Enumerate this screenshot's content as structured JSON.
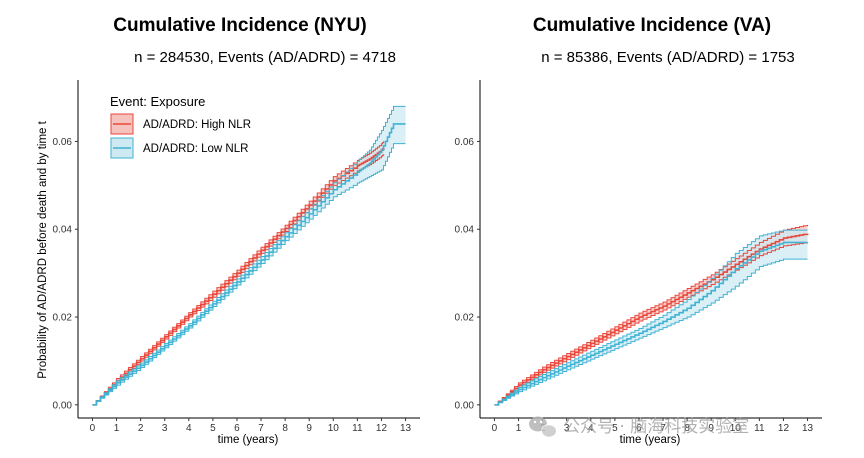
{
  "watermark": {
    "text": "公众号 · 脑海科技实验室",
    "icon": "wechat-icon"
  },
  "chart_data": [
    {
      "type": "line",
      "title": "Cumulative Incidence (NYU)",
      "subtitle": "n = 284530, Events (AD/ADRD) = 4718",
      "xlabel": "time (years)",
      "ylabel": "Probability of AD/ADRD before death and by time t",
      "xlim": [
        -0.6,
        13.6
      ],
      "ylim": [
        -0.003,
        0.074
      ],
      "x_ticks": [
        0,
        1,
        2,
        3,
        4,
        5,
        6,
        7,
        8,
        9,
        10,
        11,
        12,
        13
      ],
      "y_ticks": [
        0,
        0.02,
        0.04,
        0.06
      ],
      "y_tick_labels": [
        "0.00",
        "0.02",
        "0.04",
        "0.06"
      ],
      "grid": false,
      "legend": {
        "title": "Event: Exposure",
        "placement": "top-left",
        "entries": [
          "AD/ADRD: High NLR",
          "AD/ADRD: Low NLR"
        ]
      },
      "series": [
        {
          "name": "AD/ADRD: High NLR",
          "color": "#e8473c",
          "band_fill": "#f6c2bd",
          "x": [
            0,
            1,
            2,
            3,
            4,
            5,
            6,
            7,
            8,
            9,
            10,
            11,
            11.5,
            12.0,
            12.1
          ],
          "y": [
            0,
            0.0055,
            0.0105,
            0.0155,
            0.0205,
            0.0252,
            0.03,
            0.0352,
            0.0402,
            0.0455,
            0.051,
            0.0545,
            0.056,
            0.058,
            0.0585
          ],
          "lower": [
            0,
            0.005,
            0.01,
            0.015,
            0.02,
            0.0245,
            0.0293,
            0.0345,
            0.0395,
            0.0446,
            0.05,
            0.0533,
            0.0547,
            0.0566,
            0.057
          ],
          "upper": [
            0,
            0.006,
            0.011,
            0.016,
            0.021,
            0.0259,
            0.0307,
            0.0359,
            0.0409,
            0.0464,
            0.052,
            0.0557,
            0.0573,
            0.0594,
            0.06
          ]
        },
        {
          "name": "AD/ADRD: Low NLR",
          "color": "#3fb3d3",
          "band_fill": "#cfe9f3",
          "x": [
            0,
            1,
            2,
            3,
            4,
            5,
            6,
            7,
            8,
            9,
            10,
            11,
            11.5,
            12.0,
            12.5,
            13.0
          ],
          "y": [
            0,
            0.005,
            0.009,
            0.0135,
            0.018,
            0.023,
            0.028,
            0.033,
            0.0383,
            0.0435,
            0.049,
            0.053,
            0.055,
            0.058,
            0.064,
            0.064
          ],
          "lower": [
            0,
            0.0045,
            0.0085,
            0.013,
            0.0175,
            0.0224,
            0.0273,
            0.0322,
            0.0374,
            0.0423,
            0.0474,
            0.0505,
            0.052,
            0.0535,
            0.0595,
            0.0595
          ],
          "upper": [
            0,
            0.0055,
            0.0095,
            0.014,
            0.0185,
            0.0236,
            0.0287,
            0.0338,
            0.0392,
            0.0447,
            0.0506,
            0.0555,
            0.058,
            0.0625,
            0.068,
            0.068
          ]
        }
      ]
    },
    {
      "type": "line",
      "title": "Cumulative Incidence (VA)",
      "subtitle": "n = 85386, Events (AD/ADRD)  = 1753",
      "xlabel": "time (years)",
      "ylabel": "",
      "xlim": [
        -0.6,
        13.6
      ],
      "ylim": [
        -0.003,
        0.074
      ],
      "x_ticks": [
        0,
        1,
        2,
        3,
        4,
        5,
        6,
        7,
        8,
        9,
        10,
        11,
        12,
        13
      ],
      "y_ticks": [
        0,
        0.02,
        0.04,
        0.06
      ],
      "y_tick_labels": [
        "0.00",
        "0.02",
        "0.04",
        "0.06"
      ],
      "grid": false,
      "series": [
        {
          "name": "AD/ADRD: High NLR",
          "color": "#e8473c",
          "band_fill": "#f6c2bd",
          "x": [
            0,
            1,
            2,
            3,
            4,
            5,
            6,
            7,
            8,
            9,
            10,
            11,
            12,
            13
          ],
          "y": [
            0,
            0.0045,
            0.008,
            0.011,
            0.014,
            0.017,
            0.02,
            0.0225,
            0.0255,
            0.0285,
            0.032,
            0.0355,
            0.038,
            0.039
          ],
          "lower": [
            0,
            0.004,
            0.0074,
            0.0103,
            0.0133,
            0.0162,
            0.0191,
            0.0216,
            0.0245,
            0.0274,
            0.0307,
            0.034,
            0.0362,
            0.037
          ],
          "upper": [
            0,
            0.005,
            0.0086,
            0.0117,
            0.0147,
            0.0178,
            0.0209,
            0.0234,
            0.0265,
            0.0296,
            0.0333,
            0.037,
            0.0398,
            0.041
          ]
        },
        {
          "name": "AD/ADRD: Low NLR",
          "color": "#3fb3d3",
          "band_fill": "#cfe9f3",
          "x": [
            0,
            1,
            2,
            3,
            4,
            5,
            6,
            7,
            8,
            9,
            10,
            11,
            12,
            13
          ],
          "y": [
            0,
            0.0035,
            0.0062,
            0.0088,
            0.0113,
            0.0138,
            0.0163,
            0.019,
            0.022,
            0.026,
            0.031,
            0.035,
            0.037,
            0.037
          ],
          "lower": [
            0,
            0.003,
            0.0055,
            0.008,
            0.0104,
            0.0128,
            0.0152,
            0.0176,
            0.02,
            0.0232,
            0.027,
            0.0315,
            0.0332,
            0.0332
          ],
          "upper": [
            0,
            0.004,
            0.0069,
            0.0096,
            0.0122,
            0.0148,
            0.0174,
            0.0204,
            0.024,
            0.0288,
            0.0345,
            0.0385,
            0.0398,
            0.0398
          ]
        }
      ]
    }
  ]
}
